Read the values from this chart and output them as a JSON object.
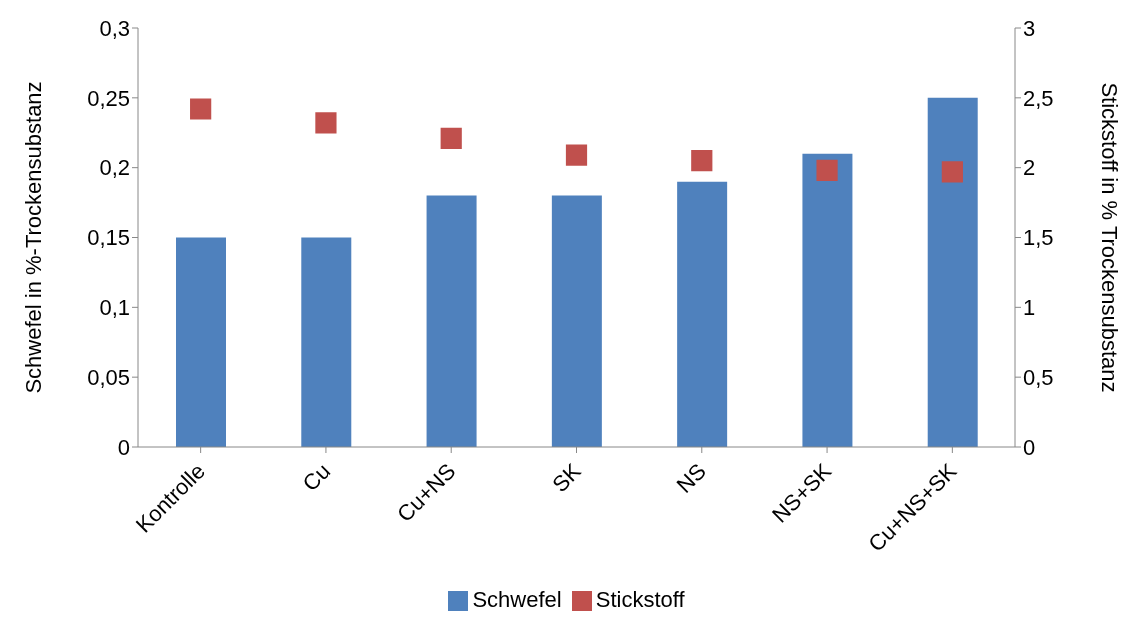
{
  "chart_data": {
    "type": "bar",
    "categories": [
      "Kontrolle",
      "Cu",
      "Cu+NS",
      "SK",
      "NS",
      "NS+SK",
      "Cu+NS+SK"
    ],
    "ylabel": "Schwefel in %-Trockensubstanz",
    "y2label": "Stickstoff in % Trockensubstanz",
    "ylim": [
      0,
      0.3
    ],
    "yticks": [
      {
        "value": 0,
        "label": "0"
      },
      {
        "value": 0.05,
        "label": "0,05"
      },
      {
        "value": 0.1,
        "label": "0,1"
      },
      {
        "value": 0.15,
        "label": "0,15"
      },
      {
        "value": 0.2,
        "label": "0,2"
      },
      {
        "value": 0.25,
        "label": "0,25"
      },
      {
        "value": 0.3,
        "label": "0,3"
      }
    ],
    "y2lim": [
      0,
      3
    ],
    "y2ticks": [
      {
        "value": 0,
        "label": "0"
      },
      {
        "value": 0.5,
        "label": "0,5"
      },
      {
        "value": 1,
        "label": "1"
      },
      {
        "value": 1.5,
        "label": "1,5"
      },
      {
        "value": 2,
        "label": "2"
      },
      {
        "value": 2.5,
        "label": "2,5"
      },
      {
        "value": 3,
        "label": "3"
      }
    ],
    "series": [
      {
        "name": "Schwefel",
        "color": "#4f81bd",
        "values": [
          0.15,
          0.15,
          0.18,
          0.18,
          0.19,
          0.21,
          0.25
        ]
      },
      {
        "name": "Stickstoff",
        "type": "scatter",
        "axis": "y2",
        "color": "#c0504d",
        "values": [
          2.42,
          2.32,
          2.21,
          2.09,
          2.05,
          1.98,
          1.97
        ]
      }
    ],
    "marker": "square",
    "legend": "bottom",
    "grid": false
  }
}
